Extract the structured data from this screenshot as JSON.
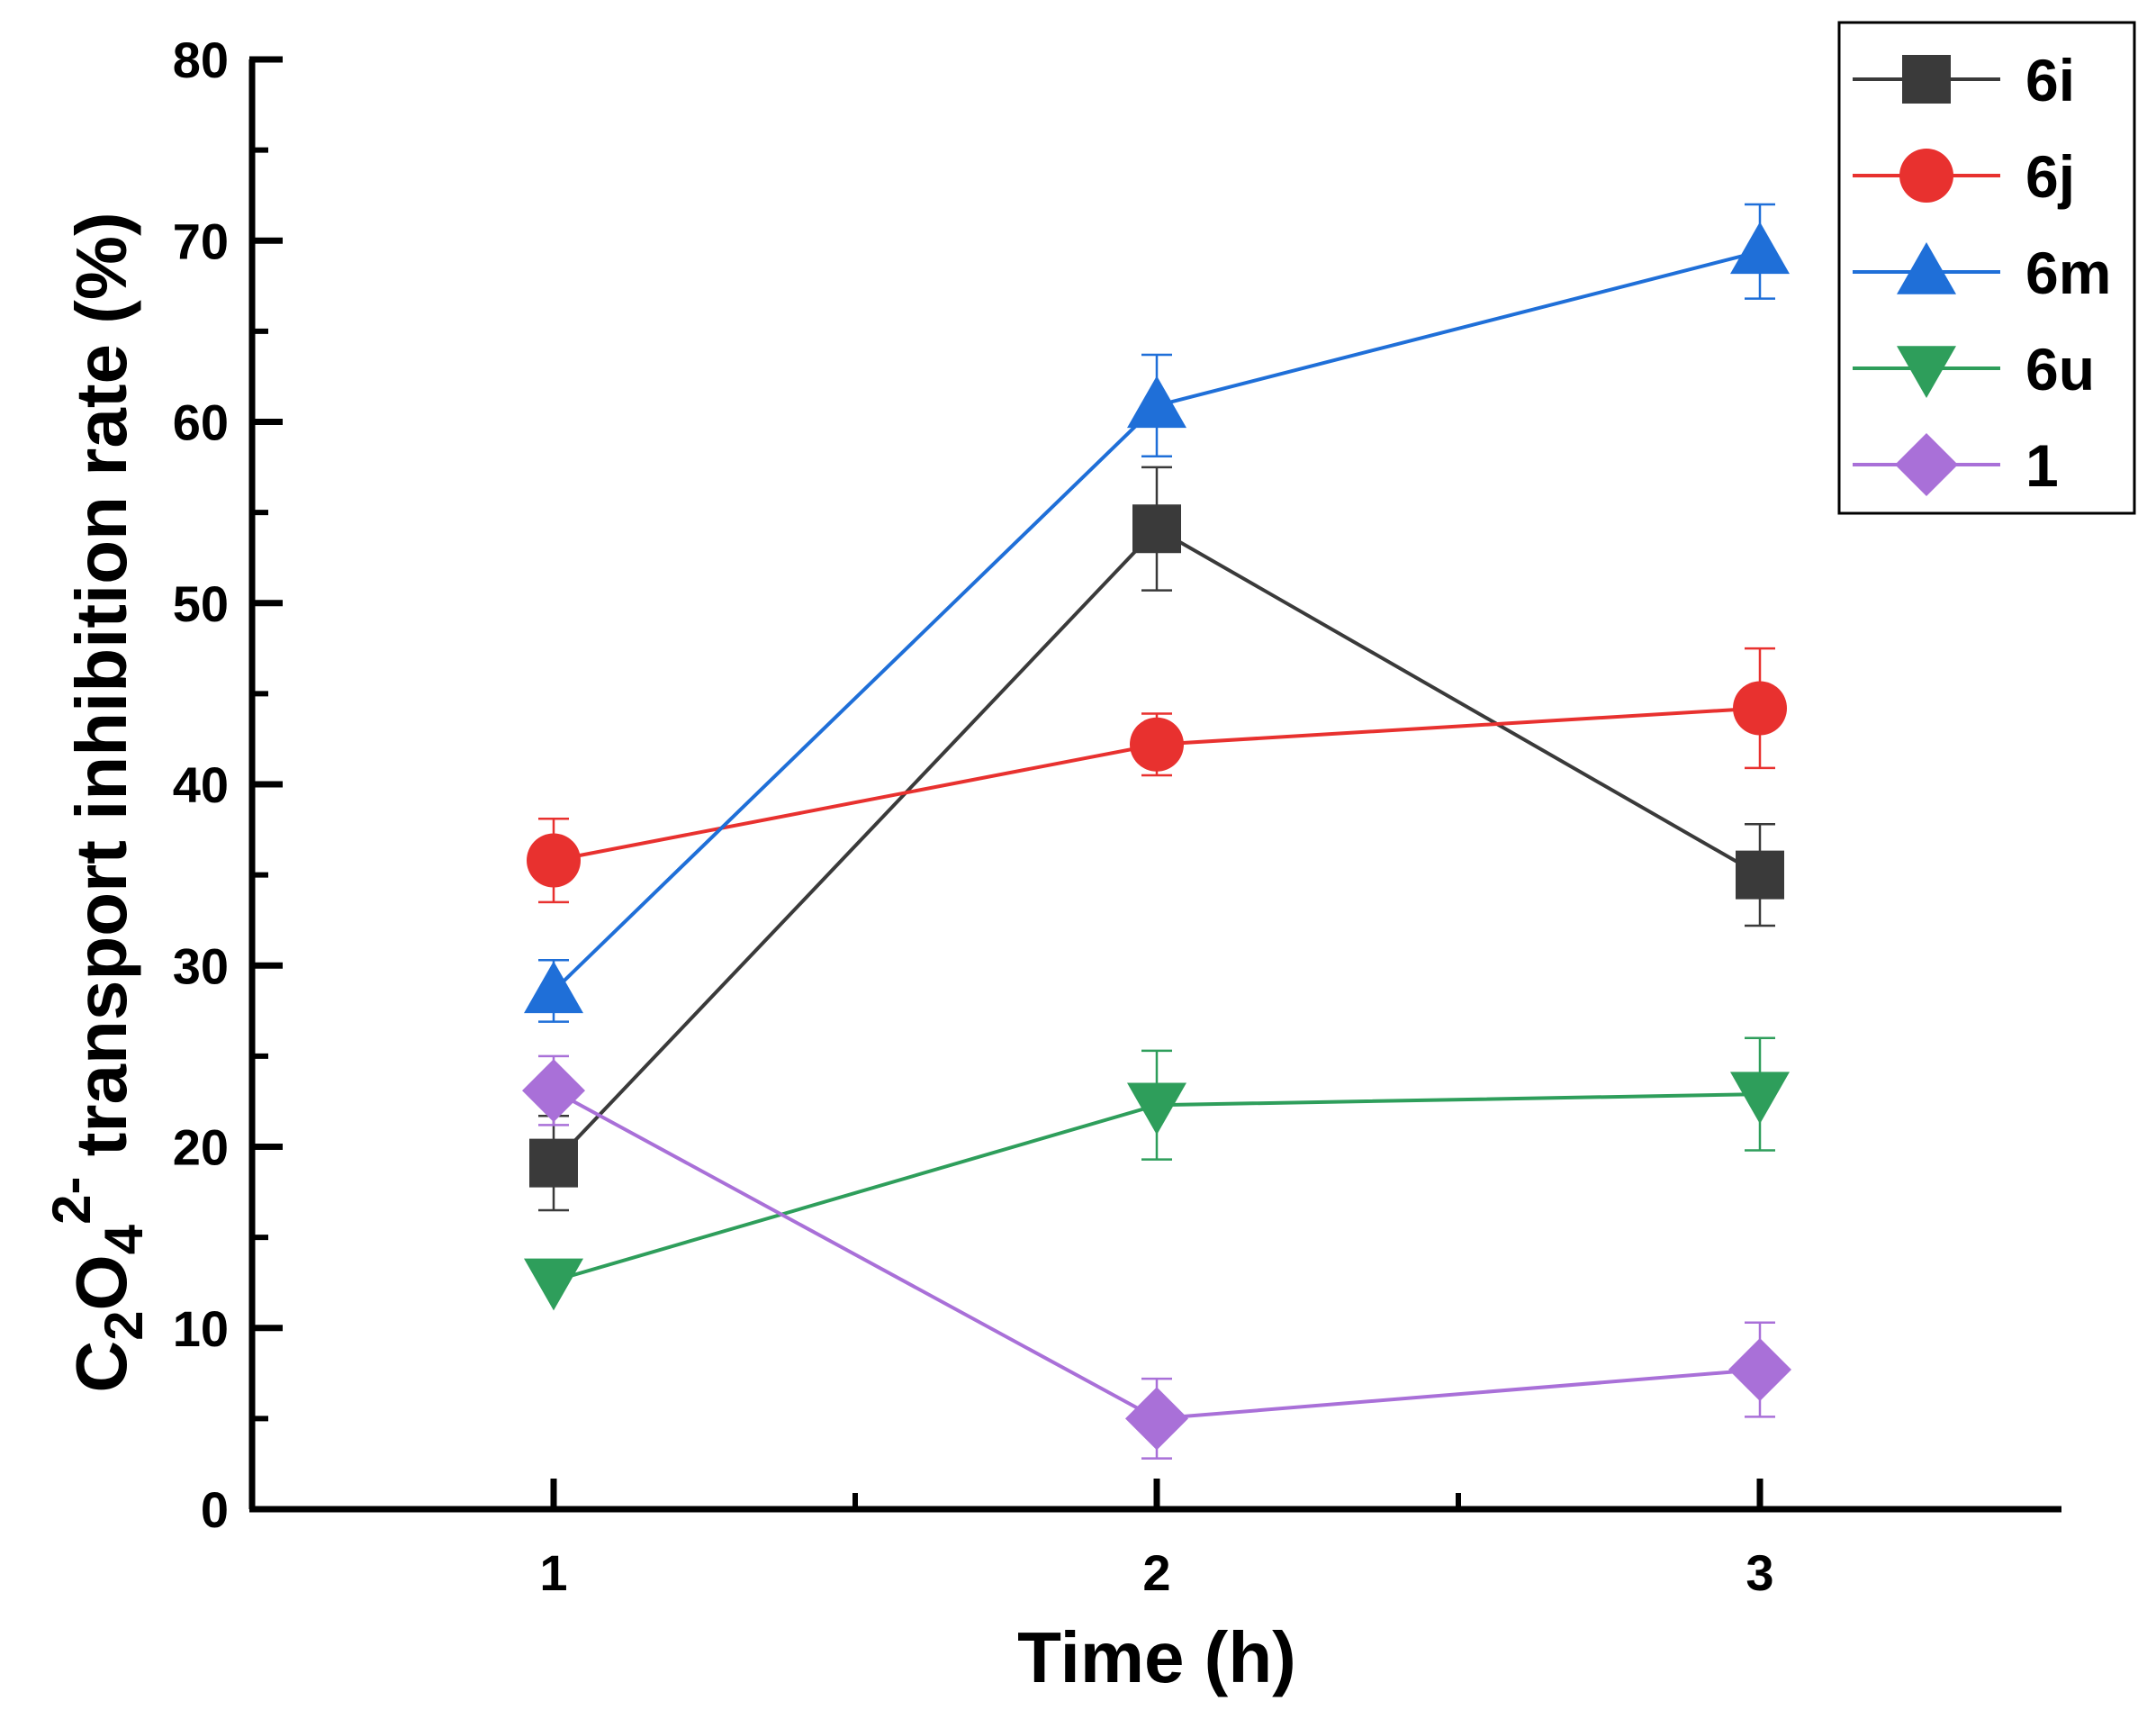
{
  "chart_data": {
    "type": "line",
    "title": "",
    "xlabel": "Time (h)",
    "ylabel": {
      "base": "C",
      "sub1": "2",
      "mid": "O",
      "sub2": "4",
      "sup": "2-",
      "rest": " transport inhibition rate (%)"
    },
    "xlim": [
      0.5,
      3.5
    ],
    "ylim": [
      0,
      80
    ],
    "x_ticks": [
      1,
      2,
      3
    ],
    "x_tick_labels": [
      "1",
      "2",
      "3"
    ],
    "x_minor_ticks": [
      1.5,
      2.5
    ],
    "y_ticks": [
      0,
      10,
      20,
      30,
      40,
      50,
      60,
      70,
      80
    ],
    "y_tick_labels": [
      "0",
      "10",
      "20",
      "30",
      "40",
      "50",
      "60",
      "70",
      "80"
    ],
    "y_minor_ticks": [
      5,
      15,
      25,
      35,
      45,
      55,
      65,
      75
    ],
    "legend_position": "top-right",
    "x": [
      1,
      2,
      3
    ],
    "series": [
      {
        "name": "6i",
        "marker": "square",
        "color": "#3a3a3a",
        "values": [
          19.1,
          54.1,
          35.0
        ],
        "errors": [
          2.6,
          3.4,
          2.8
        ]
      },
      {
        "name": "6j",
        "marker": "circle",
        "color": "#e8312f",
        "values": [
          35.8,
          42.2,
          44.2
        ],
        "errors": [
          2.3,
          1.7,
          3.3
        ]
      },
      {
        "name": "6m",
        "marker": "triangle-up",
        "color": "#1f6fd8",
        "values": [
          28.6,
          60.9,
          69.4
        ],
        "errors": [
          1.7,
          2.8,
          2.6
        ]
      },
      {
        "name": "6u",
        "marker": "triangle-down",
        "color": "#2e9e5b",
        "values": [
          12.6,
          22.3,
          22.9
        ],
        "errors": [
          0.0,
          3.0,
          3.1
        ]
      },
      {
        "name": "1",
        "marker": "diamond",
        "color": "#a970d8",
        "values": [
          23.1,
          5.0,
          7.7
        ],
        "errors": [
          1.9,
          2.2,
          2.6
        ]
      }
    ]
  }
}
